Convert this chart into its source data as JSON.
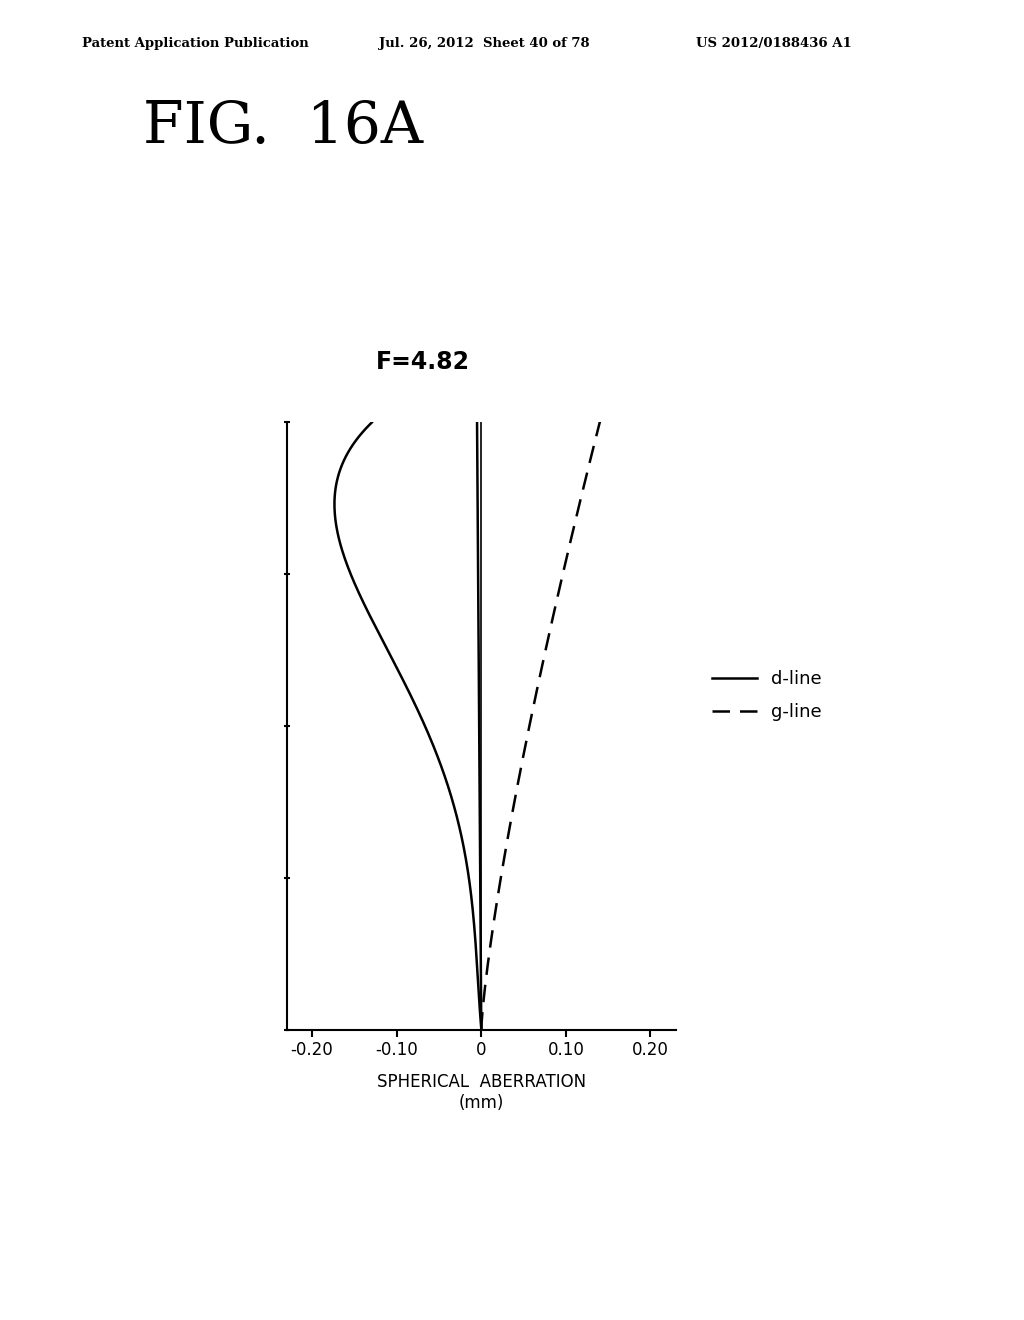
{
  "title_fig": "FIG.  16A",
  "subtitle": "F=4.82",
  "patent_line1": "Patent Application Publication",
  "patent_line2": "Jul. 26, 2012  Sheet 40 of 78",
  "patent_line3": "US 2012/0188436 A1",
  "xlabel_line1": "SPHERICAL  ABERRATION",
  "xlabel_line2": "(mm)",
  "xlim": [
    -0.25,
    0.25
  ],
  "ylim": [
    0.0,
    1.0
  ],
  "xticks": [
    -0.2,
    -0.1,
    0.0,
    0.1,
    0.2
  ],
  "xtick_labels": [
    "-0.20",
    "-0.10",
    "0",
    "0.10",
    "0.20"
  ],
  "yticks": [
    0.0,
    0.25,
    0.5,
    0.75,
    1.0
  ],
  "legend_solid": "d-line",
  "legend_dashed": "g-line",
  "background_color": "#ffffff",
  "line_color": "#000000"
}
